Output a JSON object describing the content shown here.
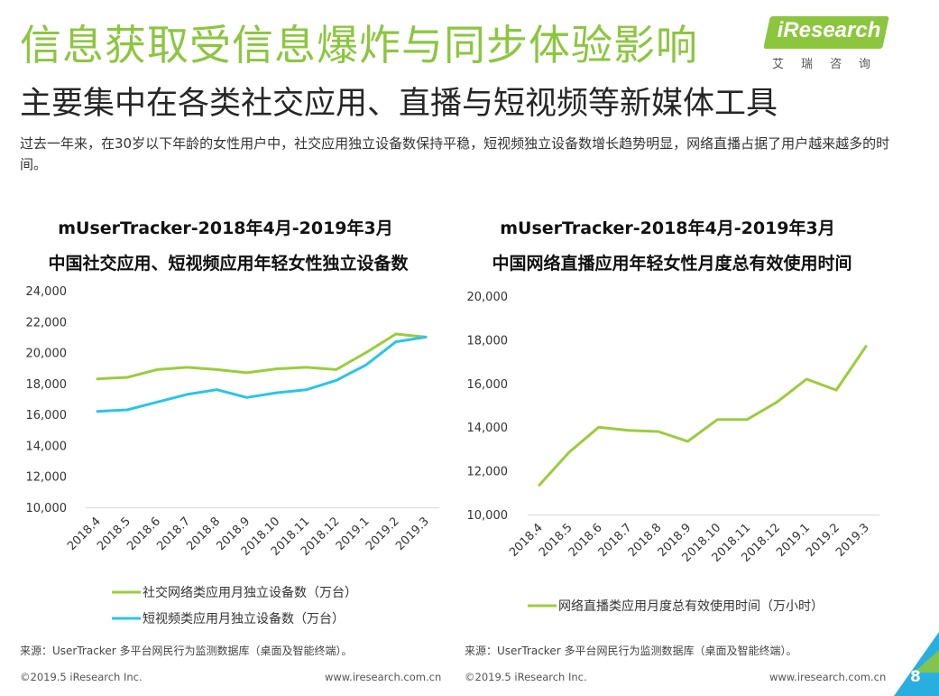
{
  "header": {
    "title": "信息获取受信息爆炸与同步体验影响",
    "subtitle": "主要集中在各类社交应用、直播与短视频等新媒体工具",
    "summary": "过去一年来，在30岁以下年龄的女性用户中，社交应用独立设备数保持平稳，短视频独立设备数增长趋势明显，网络直播占据了用户越来越多的时间。"
  },
  "logo": {
    "brand": "iResearch",
    "cn": "艾瑞咨询"
  },
  "colors": {
    "green": "#9ccc3c",
    "blue": "#29c4ec",
    "title_green": "#8cc63f",
    "corner_blue": "#29aee0"
  },
  "chart_data": [
    {
      "type": "line",
      "title": "mUserTracker-2018年4月-2019年3月",
      "subtitle": "中国社交应用、短视频应用年轻女性独立设备数",
      "categories": [
        "2018.4",
        "2018.5",
        "2018.6",
        "2018.7",
        "2018.8",
        "2018.9",
        "2018.10",
        "2018.11",
        "2018.12",
        "2019.1",
        "2019.2",
        "2019.3"
      ],
      "yticks": [
        "24,000",
        "22,000",
        "20,000",
        "18,000",
        "16,000",
        "14,000",
        "12,000",
        "10,000"
      ],
      "ylim": [
        10000,
        24000
      ],
      "grid": false,
      "legend_position": "bottom",
      "series": [
        {
          "name": "社交网络类应用月独立设备数（万台）",
          "color": "#9ccc3c",
          "values": [
            18300,
            18400,
            18900,
            19050,
            18900,
            18700,
            18950,
            19050,
            18900,
            20000,
            21200,
            21000
          ]
        },
        {
          "name": "短视频类应用月独立设备数（万台）",
          "color": "#29c4ec",
          "values": [
            16200,
            16300,
            16800,
            17300,
            17600,
            17100,
            17400,
            17600,
            18200,
            19200,
            20700,
            21000
          ]
        }
      ]
    },
    {
      "type": "line",
      "title": "mUserTracker-2018年4月-2019年3月",
      "subtitle": "中国网络直播应用年轻女性月度总有效使用时间",
      "categories": [
        "2018.4",
        "2018.5",
        "2018.6",
        "2018.7",
        "2018.8",
        "2018.9",
        "2018.10",
        "2018.11",
        "2018.12",
        "2019.1",
        "2019.2",
        "2019.3"
      ],
      "yticks": [
        "20,000",
        "18,000",
        "16,000",
        "14,000",
        "12,000",
        "10,000"
      ],
      "ylim": [
        10000,
        20000
      ],
      "grid": false,
      "legend_position": "bottom",
      "series": [
        {
          "name": "网络直播类应用月度总有效使用时间（万小时）",
          "color": "#9ccc3c",
          "values": [
            11350,
            12850,
            14000,
            13850,
            13800,
            13350,
            14350,
            14350,
            15150,
            16200,
            15700,
            17700
          ]
        }
      ]
    }
  ],
  "sources": [
    "来源：UserTracker 多平台网民行为监测数据库（桌面及智能终端）。",
    "来源：UserTracker 多平台网民行为监测数据库（桌面及智能终端）。"
  ],
  "footer": {
    "copyright": "©2019.5 iResearch Inc.",
    "website": "www.iresearch.com.cn",
    "page": "8"
  }
}
